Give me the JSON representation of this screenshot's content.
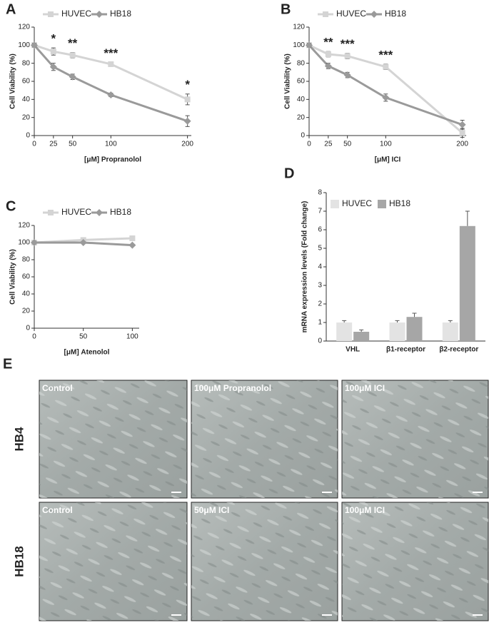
{
  "chart_data": [
    {
      "type": "line",
      "panel": "A",
      "xlabel": "[μM] Propranolol",
      "ylabel": "Cell Viability (%)",
      "x": [
        0,
        25,
        50,
        100,
        200
      ],
      "xlim": [
        0,
        205
      ],
      "xticks": [
        0,
        25,
        50,
        100,
        200
      ],
      "ylim": [
        0,
        120
      ],
      "yticks": [
        0,
        20,
        40,
        60,
        80,
        100,
        120
      ],
      "legend": "top",
      "series": [
        {
          "name": "HUVEC",
          "color": "#d4d4d4",
          "marker": "square",
          "values": [
            100,
            93,
            89,
            79,
            40
          ],
          "errors": [
            2,
            4,
            3,
            2,
            6
          ]
        },
        {
          "name": "HB18",
          "color": "#9a9a9a",
          "marker": "diamond",
          "values": [
            100,
            76,
            65,
            45,
            16
          ],
          "errors": [
            2,
            4,
            3,
            2,
            6
          ]
        }
      ],
      "annotations": [
        {
          "x": 25,
          "text": "*"
        },
        {
          "x": 50,
          "text": "**"
        },
        {
          "x": 100,
          "text": "***"
        },
        {
          "x": 200,
          "text": "*"
        }
      ]
    },
    {
      "type": "line",
      "panel": "B",
      "xlabel": "[μM] ICI",
      "ylabel": "Cell Viability (%)",
      "x": [
        0,
        25,
        50,
        100,
        200
      ],
      "xlim": [
        0,
        205
      ],
      "xticks": [
        0,
        25,
        50,
        100,
        200
      ],
      "ylim": [
        0,
        120
      ],
      "yticks": [
        0,
        20,
        40,
        60,
        80,
        100,
        120
      ],
      "legend": "top",
      "series": [
        {
          "name": "HUVEC",
          "color": "#d4d4d4",
          "marker": "square",
          "values": [
            100,
            90,
            88,
            76,
            3
          ],
          "errors": [
            2,
            3,
            3,
            3,
            5
          ]
        },
        {
          "name": "HB18",
          "color": "#9a9a9a",
          "marker": "diamond",
          "values": [
            100,
            77,
            67,
            42,
            12
          ],
          "errors": [
            2,
            3,
            3,
            4,
            5
          ]
        }
      ],
      "annotations": [
        {
          "x": 25,
          "text": "**"
        },
        {
          "x": 50,
          "text": "***"
        },
        {
          "x": 100,
          "text": "***"
        }
      ]
    },
    {
      "type": "line",
      "panel": "C",
      "xlabel": "[μM] Atenolol",
      "ylabel": "Cell Viability (%)",
      "x": [
        0,
        50,
        100
      ],
      "xlim": [
        0,
        107
      ],
      "xticks": [
        0,
        50,
        100
      ],
      "ylim": [
        0,
        120
      ],
      "yticks": [
        0,
        20,
        40,
        60,
        80,
        100,
        120
      ],
      "legend": "top",
      "series": [
        {
          "name": "HUVEC",
          "color": "#d4d4d4",
          "marker": "square",
          "values": [
            100,
            103,
            105
          ]
        },
        {
          "name": "HB18",
          "color": "#9a9a9a",
          "marker": "diamond",
          "values": [
            100,
            100,
            97
          ]
        }
      ]
    },
    {
      "type": "bar",
      "panel": "D",
      "ylabel": "mRNA expression levels  (Fold change)",
      "categories": [
        "VHL",
        "β1-receptor",
        "β2-receptor"
      ],
      "ylim": [
        0,
        8
      ],
      "yticks": [
        0,
        1,
        2,
        3,
        4,
        5,
        6,
        7,
        8
      ],
      "legend": "upper left",
      "series": [
        {
          "name": "HUVEC",
          "color": "#e3e3e3",
          "values": [
            1,
            1,
            1
          ],
          "errors": [
            0.1,
            0.1,
            0.1
          ]
        },
        {
          "name": "HB18",
          "color": "#a6a6a6",
          "values": [
            0.5,
            1.3,
            6.2
          ],
          "errors": [
            0.1,
            0.2,
            0.8
          ]
        }
      ]
    }
  ],
  "micrographs": {
    "panel": "E",
    "rows": [
      {
        "label": "HB4",
        "images": [
          "Control",
          "100μM Propranolol",
          "100μM ICI"
        ]
      },
      {
        "label": "HB18",
        "images": [
          "Control",
          "50μM ICI",
          "100μM ICI"
        ]
      }
    ]
  }
}
